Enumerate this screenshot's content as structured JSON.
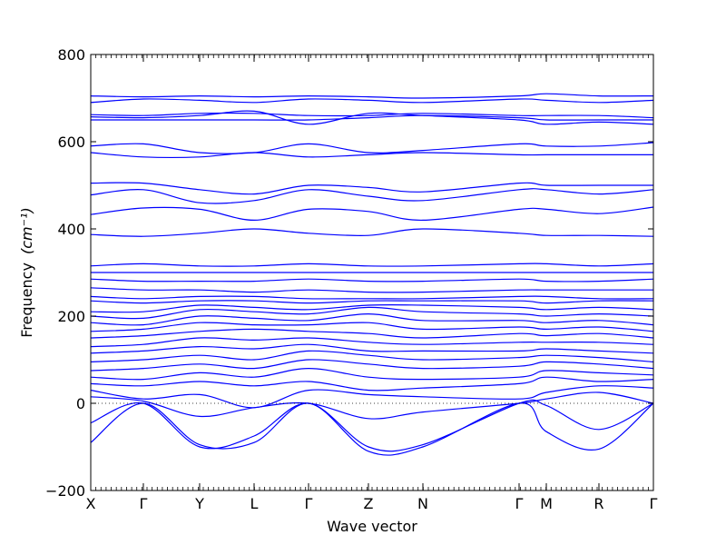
{
  "chart_data": {
    "type": "line",
    "title": "",
    "xlabel": "Wave vector",
    "ylabel": "Frequency",
    "ylabel_unit": "(cm⁻¹)",
    "ylim": [
      -200,
      800
    ],
    "yticks": [
      -200,
      0,
      200,
      400,
      600,
      800
    ],
    "grid": false,
    "legend": "none",
    "line_color": "#0000ff",
    "zero_line_style": "dotted",
    "high_symmetry_points": [
      {
        "label": "X",
        "x": 0.0
      },
      {
        "label": "Γ",
        "x": 0.0935
      },
      {
        "label": "Y",
        "x": 0.1935
      },
      {
        "label": "L",
        "x": 0.2903
      },
      {
        "label": "Γ",
        "x": 0.3871
      },
      {
        "label": "Z",
        "x": 0.4935
      },
      {
        "label": "N",
        "x": 0.5903
      },
      {
        "label": "Γ",
        "x": 0.7613
      },
      {
        "label": "M",
        "x": 0.8097
      },
      {
        "label": "R",
        "x": 0.9032
      },
      {
        "label": "Γ",
        "x": 1.0
      }
    ],
    "xlim": [
      0,
      1
    ],
    "series": [
      {
        "x": [
          0.0,
          0.0935,
          0.1935,
          0.2903,
          0.3871,
          0.4935,
          0.5903,
          0.7613,
          0.8097,
          0.9032,
          1.0
        ],
        "y": [
          -90,
          0,
          -95,
          -90,
          0,
          -110,
          -100,
          0,
          -65,
          -105,
          0
        ]
      },
      {
        "x": [
          0.0,
          0.0935,
          0.1935,
          0.2903,
          0.3871,
          0.4935,
          0.5903,
          0.7613,
          0.8097,
          0.9032,
          1.0
        ],
        "y": [
          -45,
          0,
          -100,
          -75,
          0,
          -100,
          -95,
          0,
          -5,
          -60,
          0
        ]
      },
      {
        "x": [
          0.0,
          0.0935,
          0.1935,
          0.2903,
          0.3871,
          0.4935,
          0.5903,
          0.7613,
          0.8097,
          0.9032,
          1.0
        ],
        "y": [
          15,
          5,
          -30,
          -10,
          0,
          -35,
          -20,
          0,
          10,
          25,
          0
        ]
      },
      {
        "x": [
          0.0,
          0.0935,
          0.1935,
          0.2903,
          0.3871,
          0.4935,
          0.5903,
          0.7613,
          0.8097,
          0.9032,
          1.0
        ],
        "y": [
          30,
          10,
          20,
          -10,
          30,
          20,
          15,
          10,
          25,
          40,
          35
        ]
      },
      {
        "x": [
          0.0,
          0.0935,
          0.1935,
          0.2903,
          0.3871,
          0.4935,
          0.5903,
          0.7613,
          0.8097,
          0.9032,
          1.0
        ],
        "y": [
          45,
          40,
          50,
          40,
          50,
          30,
          35,
          45,
          60,
          50,
          55
        ]
      },
      {
        "x": [
          0.0,
          0.0935,
          0.1935,
          0.2903,
          0.3871,
          0.4935,
          0.5903,
          0.7613,
          0.8097,
          0.9032,
          1.0
        ],
        "y": [
          60,
          55,
          70,
          60,
          80,
          60,
          55,
          60,
          75,
          70,
          65
        ]
      },
      {
        "x": [
          0.0,
          0.0935,
          0.1935,
          0.2903,
          0.3871,
          0.4935,
          0.5903,
          0.7613,
          0.8097,
          0.9032,
          1.0
        ],
        "y": [
          75,
          80,
          90,
          80,
          100,
          90,
          80,
          85,
          95,
          90,
          80
        ]
      },
      {
        "x": [
          0.0,
          0.0935,
          0.1935,
          0.2903,
          0.3871,
          0.4935,
          0.5903,
          0.7613,
          0.8097,
          0.9032,
          1.0
        ],
        "y": [
          95,
          100,
          110,
          100,
          120,
          110,
          100,
          105,
          110,
          105,
          95
        ]
      },
      {
        "x": [
          0.0,
          0.0935,
          0.1935,
          0.2903,
          0.3871,
          0.4935,
          0.5903,
          0.7613,
          0.8097,
          0.9032,
          1.0
        ],
        "y": [
          115,
          120,
          130,
          125,
          135,
          120,
          120,
          120,
          125,
          120,
          115
        ]
      },
      {
        "x": [
          0.0,
          0.0935,
          0.1935,
          0.2903,
          0.3871,
          0.4935,
          0.5903,
          0.7613,
          0.8097,
          0.9032,
          1.0
        ],
        "y": [
          130,
          135,
          150,
          145,
          150,
          140,
          135,
          140,
          140,
          140,
          135
        ]
      },
      {
        "x": [
          0.0,
          0.0935,
          0.1935,
          0.2903,
          0.3871,
          0.4935,
          0.5903,
          0.7613,
          0.8097,
          0.9032,
          1.0
        ],
        "y": [
          150,
          155,
          165,
          170,
          165,
          160,
          150,
          160,
          155,
          160,
          150
        ]
      },
      {
        "x": [
          0.0,
          0.0935,
          0.1935,
          0.2903,
          0.3871,
          0.4935,
          0.5903,
          0.7613,
          0.8097,
          0.9032,
          1.0
        ],
        "y": [
          165,
          170,
          185,
          180,
          180,
          185,
          170,
          175,
          170,
          175,
          165
        ]
      },
      {
        "x": [
          0.0,
          0.0935,
          0.1935,
          0.2903,
          0.3871,
          0.4935,
          0.5903,
          0.7613,
          0.8097,
          0.9032,
          1.0
        ],
        "y": [
          185,
          180,
          200,
          195,
          190,
          205,
          190,
          190,
          185,
          190,
          180
        ]
      },
      {
        "x": [
          0.0,
          0.0935,
          0.1935,
          0.2903,
          0.3871,
          0.4935,
          0.5903,
          0.7613,
          0.8097,
          0.9032,
          1.0
        ],
        "y": [
          200,
          195,
          215,
          210,
          205,
          220,
          210,
          205,
          200,
          205,
          200
        ]
      },
      {
        "x": [
          0.0,
          0.0935,
          0.1935,
          0.2903,
          0.3871,
          0.4935,
          0.5903,
          0.7613,
          0.8097,
          0.9032,
          1.0
        ],
        "y": [
          210,
          210,
          225,
          220,
          215,
          225,
          225,
          220,
          215,
          220,
          215
        ]
      },
      {
        "x": [
          0.0,
          0.0935,
          0.1935,
          0.2903,
          0.3871,
          0.4935,
          0.5903,
          0.7613,
          0.8097,
          0.9032,
          1.0
        ],
        "y": [
          235,
          230,
          235,
          235,
          230,
          235,
          235,
          235,
          230,
          235,
          235
        ]
      },
      {
        "x": [
          0.0,
          0.0935,
          0.1935,
          0.2903,
          0.3871,
          0.4935,
          0.5903,
          0.7613,
          0.8097,
          0.9032,
          1.0
        ],
        "y": [
          245,
          240,
          245,
          245,
          240,
          240,
          240,
          245,
          245,
          240,
          240
        ]
      },
      {
        "x": [
          0.0,
          0.0935,
          0.1935,
          0.2903,
          0.3871,
          0.4935,
          0.5903,
          0.7613,
          0.8097,
          0.9032,
          1.0
        ],
        "y": [
          265,
          260,
          260,
          255,
          260,
          255,
          255,
          260,
          260,
          260,
          260
        ]
      },
      {
        "x": [
          0.0,
          0.0935,
          0.1935,
          0.2903,
          0.3871,
          0.4935,
          0.5903,
          0.7613,
          0.8097,
          0.9032,
          1.0
        ],
        "y": [
          285,
          280,
          280,
          280,
          285,
          280,
          280,
          285,
          280,
          280,
          285
        ]
      },
      {
        "x": [
          0.0,
          0.0935,
          0.1935,
          0.2903,
          0.3871,
          0.4935,
          0.5903,
          0.7613,
          0.8097,
          0.9032,
          1.0
        ],
        "y": [
          300,
          300,
          300,
          300,
          300,
          300,
          300,
          300,
          300,
          300,
          300
        ]
      },
      {
        "x": [
          0.0,
          0.0935,
          0.1935,
          0.2903,
          0.3871,
          0.4935,
          0.5903,
          0.7613,
          0.8097,
          0.9032,
          1.0
        ],
        "y": [
          315,
          320,
          315,
          315,
          320,
          315,
          315,
          320,
          320,
          315,
          320
        ]
      },
      {
        "x": [
          0.0,
          0.0935,
          0.1935,
          0.2903,
          0.3871,
          0.4935,
          0.5903,
          0.7613,
          0.8097,
          0.9032,
          1.0
        ],
        "y": [
          387,
          383,
          390,
          400,
          390,
          385,
          400,
          390,
          385,
          385,
          383
        ]
      },
      {
        "x": [
          0.0,
          0.0935,
          0.1935,
          0.2903,
          0.3871,
          0.4935,
          0.5903,
          0.7613,
          0.8097,
          0.9032,
          1.0
        ],
        "y": [
          433,
          448,
          445,
          420,
          445,
          440,
          420,
          445,
          445,
          435,
          450
        ]
      },
      {
        "x": [
          0.0,
          0.0935,
          0.1935,
          0.2903,
          0.3871,
          0.4935,
          0.5903,
          0.7613,
          0.8097,
          0.9032,
          1.0
        ],
        "y": [
          478,
          490,
          460,
          465,
          490,
          475,
          465,
          490,
          490,
          480,
          490
        ]
      },
      {
        "x": [
          0.0,
          0.0935,
          0.1935,
          0.2903,
          0.3871,
          0.4935,
          0.5903,
          0.7613,
          0.8097,
          0.9032,
          1.0
        ],
        "y": [
          505,
          505,
          490,
          480,
          500,
          495,
          485,
          505,
          500,
          500,
          500
        ]
      },
      {
        "x": [
          0.0,
          0.0935,
          0.1935,
          0.2903,
          0.3871,
          0.4935,
          0.5903,
          0.7613,
          0.8097,
          0.9032,
          1.0
        ],
        "y": [
          575,
          565,
          565,
          575,
          565,
          570,
          575,
          570,
          570,
          570,
          570
        ]
      },
      {
        "x": [
          0.0,
          0.0935,
          0.1935,
          0.2903,
          0.3871,
          0.4935,
          0.5903,
          0.7613,
          0.8097,
          0.9032,
          1.0
        ],
        "y": [
          590,
          595,
          575,
          575,
          595,
          575,
          580,
          595,
          590,
          590,
          598
        ]
      },
      {
        "x": [
          0.0,
          0.0935,
          0.1935,
          0.2903,
          0.3871,
          0.4935,
          0.5903,
          0.7613,
          0.8097,
          0.9032,
          1.0
        ],
        "y": [
          650,
          650,
          650,
          650,
          650,
          655,
          660,
          655,
          650,
          650,
          650
        ]
      },
      {
        "x": [
          0.0,
          0.0935,
          0.1935,
          0.2903,
          0.3871,
          0.4935,
          0.5903,
          0.7613,
          0.8097,
          0.9032,
          1.0
        ],
        "y": [
          657,
          655,
          660,
          670,
          640,
          665,
          660,
          650,
          640,
          645,
          640
        ]
      },
      {
        "x": [
          0.0,
          0.0935,
          0.1935,
          0.2903,
          0.3871,
          0.4935,
          0.5903,
          0.7613,
          0.8097,
          0.9032,
          1.0
        ],
        "y": [
          662,
          660,
          665,
          665,
          660,
          660,
          665,
          660,
          660,
          660,
          655
        ]
      },
      {
        "x": [
          0.0,
          0.0935,
          0.1935,
          0.2903,
          0.3871,
          0.4935,
          0.5903,
          0.7613,
          0.8097,
          0.9032,
          1.0
        ],
        "y": [
          690,
          698,
          695,
          690,
          698,
          695,
          690,
          698,
          695,
          690,
          695
        ]
      },
      {
        "x": [
          0.0,
          0.0935,
          0.1935,
          0.2903,
          0.3871,
          0.4935,
          0.5903,
          0.7613,
          0.8097,
          0.9032,
          1.0
        ],
        "y": [
          705,
          703,
          705,
          703,
          705,
          703,
          700,
          705,
          710,
          705,
          705
        ]
      }
    ]
  }
}
